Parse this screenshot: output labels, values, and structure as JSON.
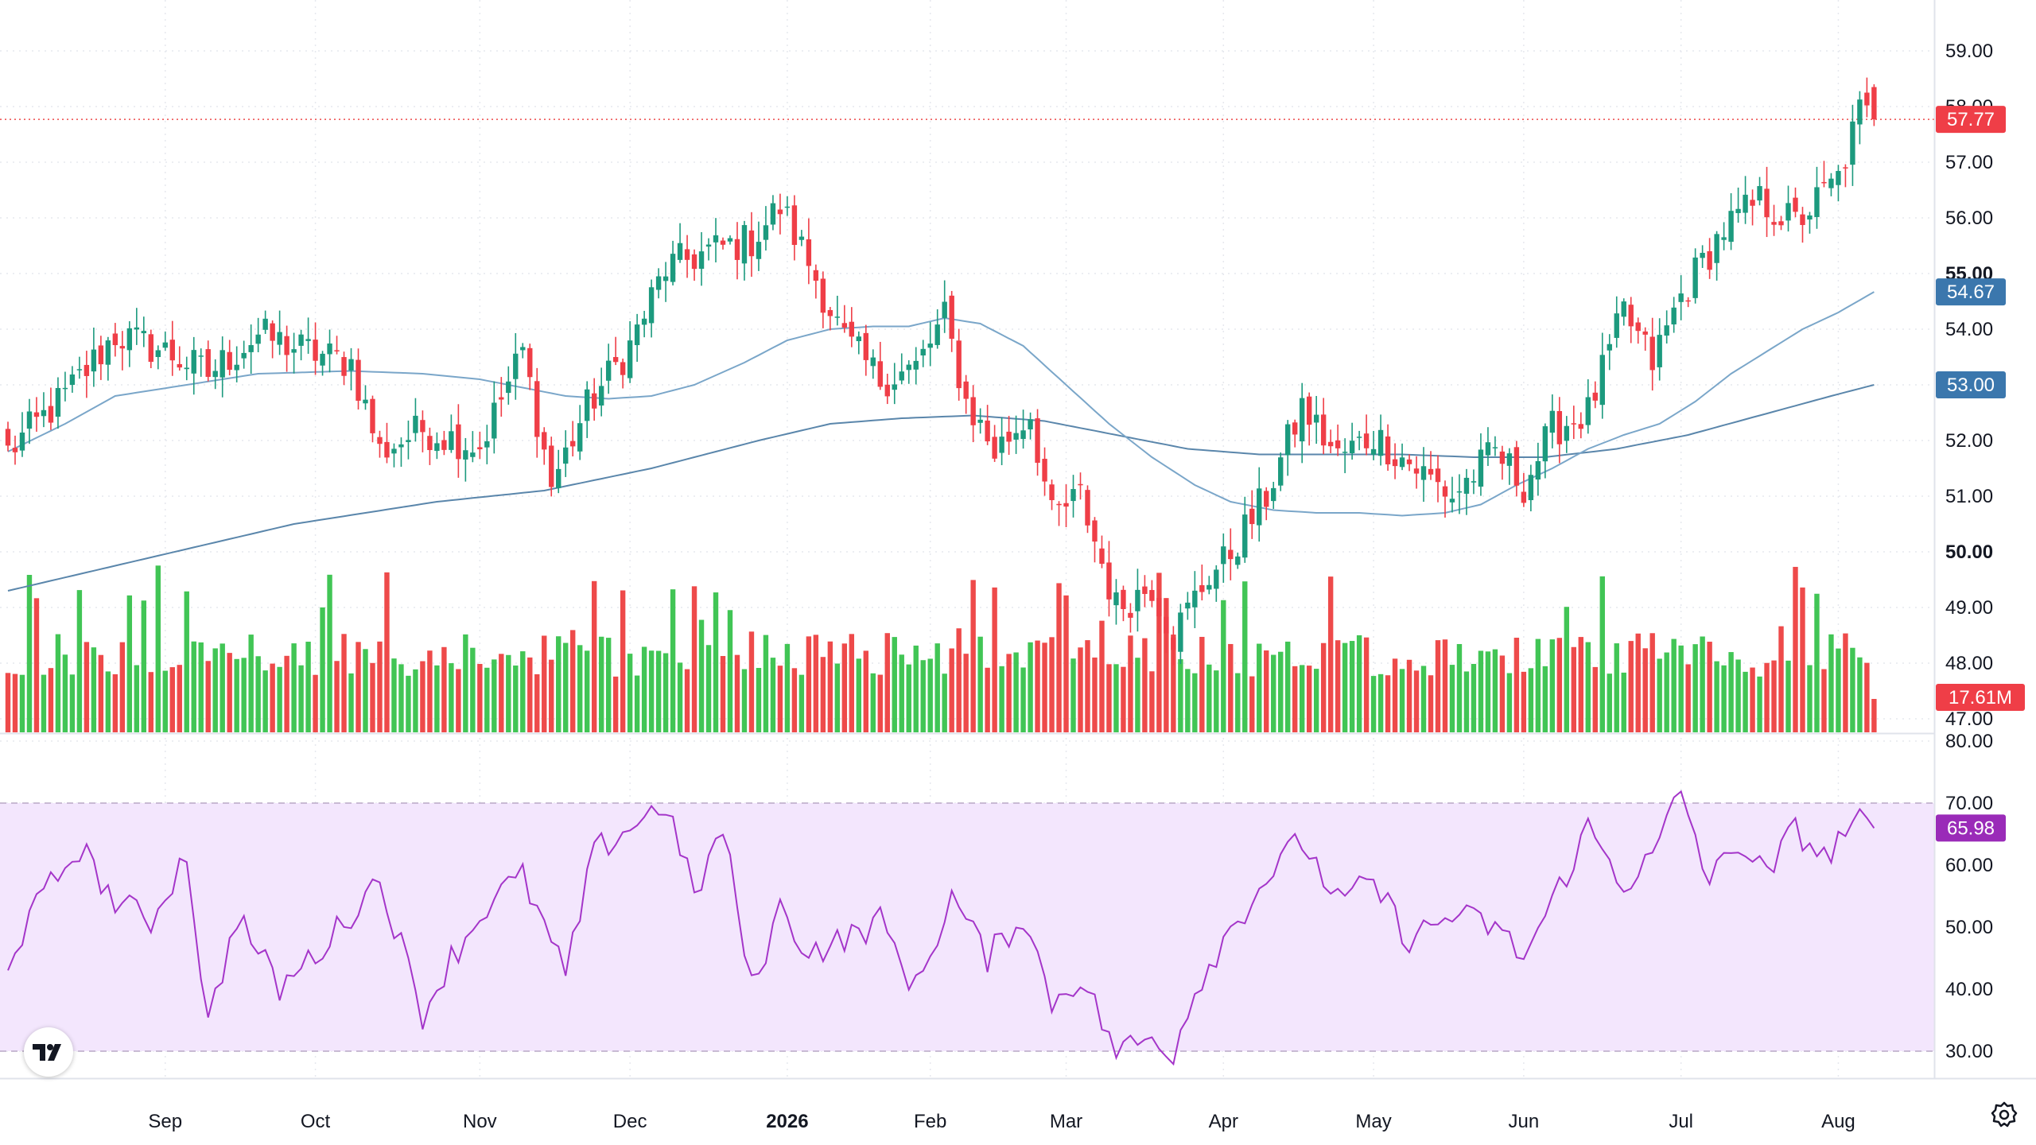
{
  "chart_data": {
    "type": "candlestick",
    "price_axis": {
      "ylim": [
        47.0,
        59.2
      ],
      "ticks": [
        "59.00",
        "58.00",
        "57.00",
        "56.00",
        "55.00",
        "54.00",
        "53.00",
        "52.00",
        "51.00",
        "50.00",
        "49.00",
        "48.00",
        "47.00"
      ],
      "bold_ticks": [
        "55.00",
        "50.00"
      ]
    },
    "time_axis": {
      "labels": [
        {
          "text": "Sep",
          "index": 22
        },
        {
          "text": "Oct",
          "index": 43
        },
        {
          "text": "Nov",
          "index": 66
        },
        {
          "text": "Dec",
          "index": 87
        },
        {
          "text": "2026",
          "index": 109,
          "bold": true
        },
        {
          "text": "Feb",
          "index": 129
        },
        {
          "text": "Mar",
          "index": 148
        },
        {
          "text": "Apr",
          "index": 170
        },
        {
          "text": "May",
          "index": 191
        },
        {
          "text": "Jun",
          "index": 212
        },
        {
          "text": "Jul",
          "index": 234
        },
        {
          "text": "Aug",
          "index": 256
        }
      ]
    },
    "last_price": "57.77",
    "ma_fast_value": "54.67",
    "ma_slow_value": "53.00",
    "volume_value": "17.61M",
    "rsi_axis": {
      "ylim": [
        28,
        80
      ],
      "ticks": [
        "80.00",
        "70.00",
        "60.00",
        "50.00",
        "40.00",
        "30.00"
      ],
      "band": [
        30,
        70
      ]
    },
    "rsi_value": "65.98",
    "anchors": {
      "close": [
        [
          0,
          51.8
        ],
        [
          8,
          52.8
        ],
        [
          15,
          53.9
        ],
        [
          22,
          53.6
        ],
        [
          28,
          53.2
        ],
        [
          35,
          53.9
        ],
        [
          42,
          53.6
        ],
        [
          48,
          53.4
        ],
        [
          52,
          51.8
        ],
        [
          58,
          52.2
        ],
        [
          66,
          51.9
        ],
        [
          72,
          53.6
        ],
        [
          76,
          51.2
        ],
        [
          81,
          52.6
        ],
        [
          87,
          53.7
        ],
        [
          92,
          55.1
        ],
        [
          98,
          55.4
        ],
        [
          104,
          55.6
        ],
        [
          108,
          56.2
        ],
        [
          112,
          55.2
        ],
        [
          117,
          53.8
        ],
        [
          122,
          53.1
        ],
        [
          127,
          53.3
        ],
        [
          131,
          54.2
        ],
        [
          134,
          52.7
        ],
        [
          138,
          51.8
        ],
        [
          143,
          52.5
        ],
        [
          146,
          50.6
        ],
        [
          150,
          51.0
        ],
        [
          155,
          49.0
        ],
        [
          160,
          49.4
        ],
        [
          163,
          48.5
        ],
        [
          168,
          49.6
        ],
        [
          170,
          49.8
        ],
        [
          176,
          51.0
        ],
        [
          181,
          52.6
        ],
        [
          186,
          51.7
        ],
        [
          191,
          52.1
        ],
        [
          197,
          51.5
        ],
        [
          202,
          51.0
        ],
        [
          208,
          51.8
        ],
        [
          212,
          51.2
        ],
        [
          216,
          52.2
        ],
        [
          221,
          52.5
        ],
        [
          226,
          54.3
        ],
        [
          230,
          53.4
        ],
        [
          234,
          54.6
        ],
        [
          240,
          55.8
        ],
        [
          245,
          56.3
        ],
        [
          250,
          55.9
        ],
        [
          256,
          56.7
        ],
        [
          259,
          57.9
        ],
        [
          261,
          57.77
        ]
      ],
      "rsi": [
        [
          0,
          45
        ],
        [
          5,
          55
        ],
        [
          10,
          63
        ],
        [
          15,
          54
        ],
        [
          20,
          51
        ],
        [
          25,
          62
        ],
        [
          28,
          34
        ],
        [
          32,
          52
        ],
        [
          38,
          40
        ],
        [
          45,
          48
        ],
        [
          52,
          58
        ],
        [
          58,
          36
        ],
        [
          62,
          45
        ],
        [
          68,
          55
        ],
        [
          72,
          58
        ],
        [
          78,
          42
        ],
        [
          82,
          62
        ],
        [
          88,
          67
        ],
        [
          92,
          70
        ],
        [
          96,
          55
        ],
        [
          100,
          66
        ],
        [
          104,
          40
        ],
        [
          108,
          53
        ],
        [
          112,
          46
        ],
        [
          117,
          48
        ],
        [
          122,
          51
        ],
        [
          127,
          40
        ],
        [
          132,
          55
        ],
        [
          137,
          45
        ],
        [
          142,
          52
        ],
        [
          146,
          38
        ],
        [
          150,
          42
        ],
        [
          155,
          30
        ],
        [
          160,
          32
        ],
        [
          163,
          30
        ],
        [
          166,
          40
        ],
        [
          170,
          48
        ],
        [
          176,
          58
        ],
        [
          181,
          64
        ],
        [
          186,
          54
        ],
        [
          191,
          57
        ],
        [
          196,
          48
        ],
        [
          202,
          52
        ],
        [
          208,
          50
        ],
        [
          212,
          45
        ],
        [
          216,
          54
        ],
        [
          221,
          66
        ],
        [
          226,
          57
        ],
        [
          230,
          61
        ],
        [
          234,
          72
        ],
        [
          238,
          57
        ],
        [
          242,
          64
        ],
        [
          246,
          58
        ],
        [
          250,
          66
        ],
        [
          254,
          61
        ],
        [
          258,
          67
        ],
        [
          261,
          65.98
        ]
      ],
      "ma_fast": [
        [
          0,
          51.8
        ],
        [
          8,
          52.3
        ],
        [
          15,
          52.8
        ],
        [
          25,
          53.0
        ],
        [
          35,
          53.2
        ],
        [
          48,
          53.25
        ],
        [
          58,
          53.2
        ],
        [
          66,
          53.1
        ],
        [
          72,
          52.95
        ],
        [
          78,
          52.8
        ],
        [
          84,
          52.75
        ],
        [
          90,
          52.8
        ],
        [
          96,
          53.0
        ],
        [
          103,
          53.4
        ],
        [
          109,
          53.8
        ],
        [
          115,
          54.0
        ],
        [
          121,
          54.05
        ],
        [
          126,
          54.05
        ],
        [
          131,
          54.2
        ],
        [
          136,
          54.1
        ],
        [
          142,
          53.7
        ],
        [
          148,
          53.0
        ],
        [
          154,
          52.3
        ],
        [
          160,
          51.7
        ],
        [
          166,
          51.2
        ],
        [
          171,
          50.9
        ],
        [
          177,
          50.75
        ],
        [
          183,
          50.7
        ],
        [
          189,
          50.7
        ],
        [
          195,
          50.65
        ],
        [
          201,
          50.7
        ],
        [
          206,
          50.85
        ],
        [
          211,
          51.2
        ],
        [
          216,
          51.5
        ],
        [
          221,
          51.85
        ],
        [
          226,
          52.1
        ],
        [
          231,
          52.3
        ],
        [
          236,
          52.7
        ],
        [
          241,
          53.2
        ],
        [
          246,
          53.6
        ],
        [
          251,
          54.0
        ],
        [
          256,
          54.3
        ],
        [
          261,
          54.67
        ]
      ],
      "ma_slow": [
        [
          0,
          49.3
        ],
        [
          20,
          49.9
        ],
        [
          40,
          50.5
        ],
        [
          60,
          50.9
        ],
        [
          75,
          51.1
        ],
        [
          90,
          51.5
        ],
        [
          105,
          52.0
        ],
        [
          115,
          52.3
        ],
        [
          125,
          52.4
        ],
        [
          135,
          52.45
        ],
        [
          145,
          52.35
        ],
        [
          155,
          52.1
        ],
        [
          165,
          51.85
        ],
        [
          175,
          51.75
        ],
        [
          185,
          51.75
        ],
        [
          195,
          51.75
        ],
        [
          205,
          51.7
        ],
        [
          215,
          51.7
        ],
        [
          225,
          51.85
        ],
        [
          235,
          52.1
        ],
        [
          245,
          52.45
        ],
        [
          255,
          52.8
        ],
        [
          261,
          53.0
        ]
      ]
    }
  }
}
